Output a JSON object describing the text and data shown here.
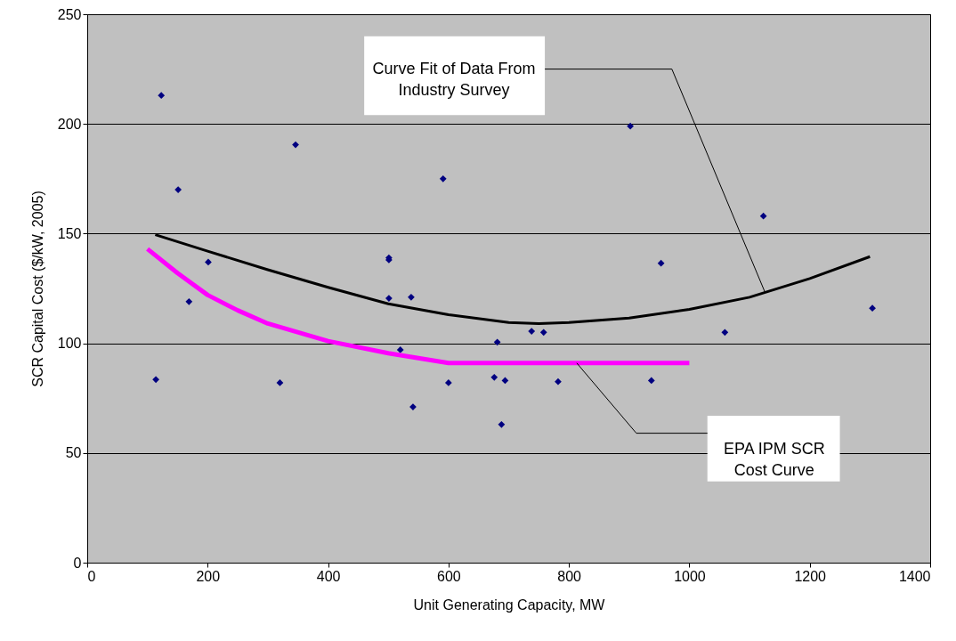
{
  "chart_data": {
    "type": "scatter",
    "xlabel": "Unit Generating Capacity, MW",
    "ylabel": "SCR Capital Cost ($/kW, 2005)",
    "xlim": [
      0,
      1400
    ],
    "xticks": [
      0,
      200,
      400,
      600,
      800,
      1000,
      1200,
      1400
    ],
    "ylim": [
      0,
      250
    ],
    "yticks": [
      0,
      50,
      100,
      150,
      200,
      250
    ],
    "grid": "y",
    "series": [
      {
        "type": "scatter",
        "marker": "diamond",
        "color": "#000080",
        "x": [
          123,
          151,
          346,
          591,
          501,
          501,
          201,
          169,
          501,
          538,
          520,
          681,
          114,
          320,
          600,
          676,
          694,
          541,
          688,
          902,
          1123,
          953,
          738,
          758,
          1059,
          1304,
          937,
          782
        ],
        "values": [
          213,
          170,
          190.5,
          175,
          138,
          139,
          137,
          119,
          120.5,
          121,
          97,
          100.5,
          83.5,
          82,
          82,
          84.5,
          83,
          71,
          63,
          199,
          158,
          136.5,
          105.5,
          105,
          105,
          116,
          83,
          82.5
        ]
      },
      {
        "type": "line",
        "line_style": "solid",
        "color": "#000000",
        "x": [
          113,
          200,
          300,
          400,
          500,
          600,
          700,
          750,
          800,
          900,
          1000,
          1100,
          1200,
          1300
        ],
        "values": [
          149.5,
          142,
          133.5,
          125.5,
          118,
          113,
          109.5,
          109,
          109.5,
          111.5,
          115.5,
          121,
          129.5,
          139.5
        ]
      },
      {
        "type": "line",
        "line_style": "solid",
        "color": "#ff00ff",
        "x": [
          100,
          150,
          200,
          250,
          300,
          400,
          500,
          600,
          1000
        ],
        "values": [
          143,
          132,
          122,
          115,
          109,
          101,
          95.5,
          91,
          91
        ]
      }
    ],
    "annotations": [
      {
        "text": "Curve Fit of Data From\nIndustry Survey",
        "x": 1126,
        "y": 123
      },
      {
        "text": "EPA IPM SCR Cost Curve",
        "x": 813,
        "y": 91
      }
    ]
  }
}
